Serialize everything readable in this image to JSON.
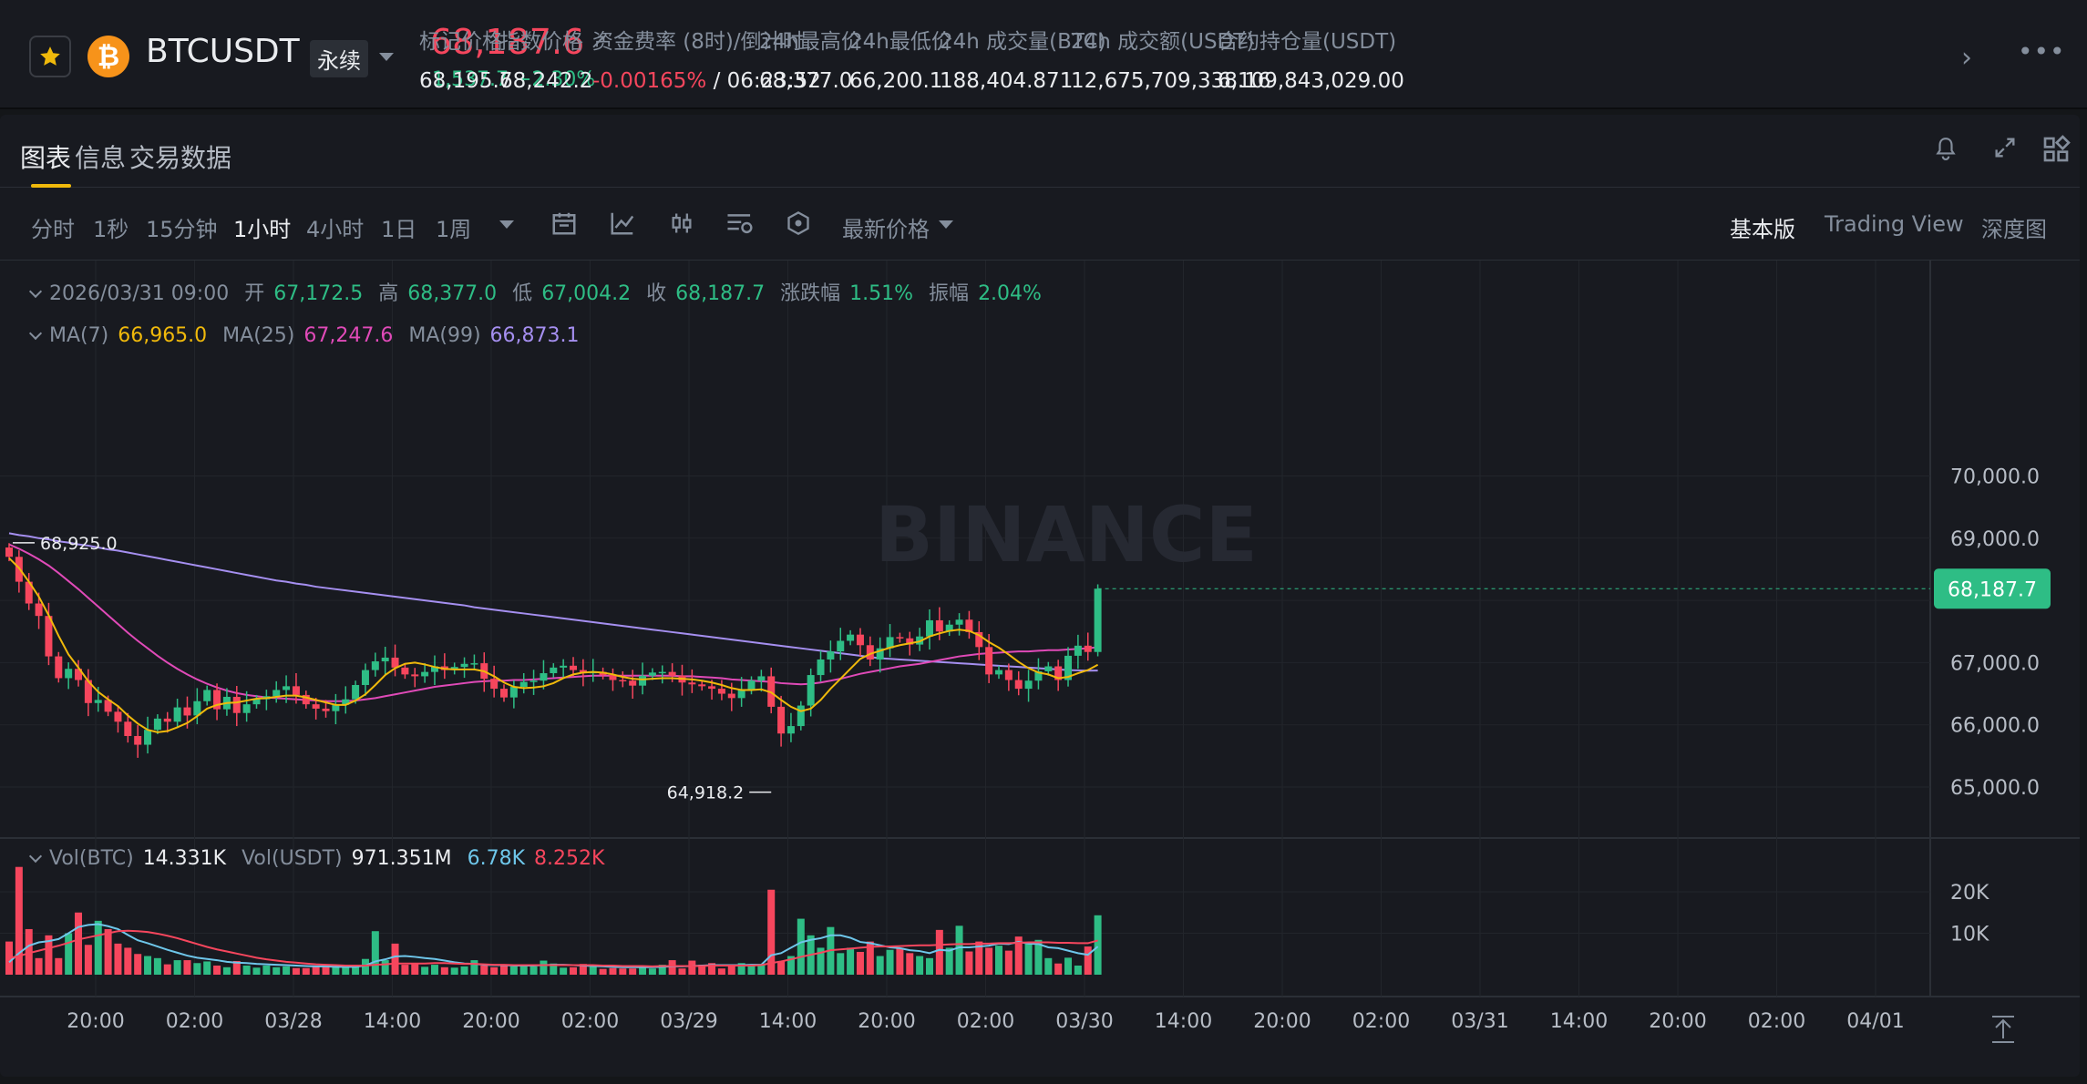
{
  "header": {
    "symbol": "BTCUSDT",
    "contract_type": "永续",
    "last_price": "68,187.6",
    "change": "1,537.7 +2.30%",
    "stats": [
      {
        "label": "标记价格",
        "value": "68,195.7"
      },
      {
        "label": "指数价格 ↗",
        "value": "68,242.2"
      },
      {
        "label": "资金费率 (8时)/倒计时",
        "value_neg": "-0.00165%",
        "value": " / 06:23:52"
      },
      {
        "label": "24h最高价",
        "value": "68,377.0"
      },
      {
        "label": "24h最低价",
        "value": "66,200.1"
      },
      {
        "label": "24h 成交量(BTC)",
        "value": "188,404.871"
      },
      {
        "label": "24h 成交额(USDT)",
        "value": "12,675,709,338.16"
      },
      {
        "label": "合约持仓量(USDT)",
        "value": "6,109,843,029.00"
      }
    ]
  },
  "tabs": [
    "图表",
    "信息",
    "交易数据"
  ],
  "intervals": [
    "分时",
    "1秒",
    "15分钟",
    "1小时",
    "4小时",
    "1日",
    "1周"
  ],
  "active_interval": "1小时",
  "price_type": "最新价格",
  "views": [
    "基本版",
    "Trading View",
    "深度图"
  ],
  "active_view": "基本版",
  "ohlc": {
    "time": "2026/03/31 09:00",
    "open_label": "开",
    "open": "67,172.5",
    "high_label": "高",
    "high": "68,377.0",
    "low_label": "低",
    "low": "67,004.2",
    "close_label": "收",
    "close": "68,187.7",
    "chg_label": "涨跌幅",
    "chg": "1.51%",
    "amp_label": "振幅",
    "amp": "2.04%"
  },
  "ma": {
    "ma7_label": "MA(7)",
    "ma7": "66,965.0",
    "ma25_label": "MA(25)",
    "ma25": "67,247.6",
    "ma99_label": "MA(99)",
    "ma99": "66,873.1"
  },
  "vol": {
    "btc_label": "Vol(BTC)",
    "btc": "14.331K",
    "usdt_label": "Vol(USDT)",
    "usdt": "971.351M",
    "ma_blue": "6.78K",
    "ma_red": "8.252K"
  },
  "colors": {
    "up": "#2ebd85",
    "down": "#f6465d",
    "ma7": "#f0b90b",
    "ma25": "#e04ab8",
    "ma99": "#a58ff0",
    "vol_ma_blue": "#6ec6ea",
    "vol_ma_red": "#f6465d",
    "accent": "#f0b90b"
  },
  "watermark": "BINANCE",
  "chart_data": {
    "type": "candlestick",
    "interval": "1h",
    "price_axis": {
      "ticks": [
        65000,
        66000,
        67000,
        68000,
        69000,
        70000
      ],
      "tick_labels": [
        "65,000.0",
        "66,000.0",
        "67,000.0",
        "",
        "69,000.0",
        "70,000.0"
      ]
    },
    "volume_axis": {
      "ticks": [
        10000,
        20000
      ],
      "tick_labels": [
        "10K",
        "20K"
      ]
    },
    "time_axis": {
      "labels": [
        "20:00",
        "02:00",
        "03/28",
        "14:00",
        "20:00",
        "02:00",
        "03/29",
        "14:00",
        "20:00",
        "02:00",
        "03/30",
        "14:00",
        "20:00",
        "02:00",
        "03/31",
        "14:00",
        "20:00",
        "02:00",
        "04/01"
      ]
    },
    "high_marker": "68,925.0",
    "low_marker": "64,918.2",
    "current_price_label": "68,187.7",
    "close": [
      68700,
      68300,
      67950,
      67750,
      67100,
      66750,
      66900,
      66720,
      66350,
      66400,
      66210,
      66050,
      65820,
      65680,
      65920,
      66100,
      66050,
      66280,
      66150,
      66380,
      66560,
      66250,
      66450,
      66190,
      66330,
      66410,
      66460,
      66560,
      66620,
      66480,
      66330,
      66260,
      66220,
      66320,
      66410,
      66640,
      66880,
      67020,
      67080,
      66920,
      66810,
      66780,
      66850,
      66940,
      66880,
      66930,
      66980,
      66990,
      66740,
      66580,
      66440,
      66610,
      66690,
      66710,
      66830,
      66920,
      66950,
      66880,
      66830,
      66850,
      66800,
      66720,
      66710,
      66630,
      66790,
      66840,
      66850,
      66790,
      66680,
      66650,
      66620,
      66580,
      66500,
      66430,
      66560,
      66710,
      66780,
      66290,
      65860,
      65980,
      66310,
      66800,
      67050,
      67180,
      67350,
      67450,
      67280,
      67050,
      67230,
      67410,
      67390,
      67290,
      67420,
      67680,
      67500,
      67610,
      67690,
      67490,
      67250,
      66810,
      66880,
      66720,
      66580,
      66710,
      66860,
      66940,
      66720,
      67110,
      67272,
      67171,
      68188
    ],
    "ma7": [
      68680,
      68520,
      68300,
      68060,
      67760,
      67430,
      67130,
      66920,
      66700,
      66530,
      66410,
      66300,
      66150,
      66020,
      65920,
      65880,
      65900,
      65960,
      66030,
      66140,
      66260,
      66320,
      66350,
      66360,
      66390,
      66420,
      66430,
      66450,
      66470,
      66470,
      66440,
      66400,
      66360,
      66320,
      66320,
      66390,
      66490,
      66640,
      66800,
      66910,
      66980,
      67000,
      66970,
      66930,
      66900,
      66890,
      66890,
      66890,
      66860,
      66780,
      66680,
      66610,
      66590,
      66600,
      66620,
      66670,
      66750,
      66810,
      66840,
      66850,
      66840,
      66810,
      66770,
      66740,
      66730,
      66740,
      66750,
      66750,
      66740,
      66730,
      66710,
      66680,
      66640,
      66590,
      66560,
      66560,
      66570,
      66520,
      66400,
      66290,
      66220,
      66260,
      66400,
      66580,
      66740,
      66900,
      67060,
      67140,
      67190,
      67240,
      67280,
      67310,
      67340,
      67420,
      67470,
      67510,
      67530,
      67510,
      67440,
      67330,
      67240,
      67130,
      67010,
      66910,
      66840,
      66810,
      66750,
      66770,
      66830,
      66880,
      66965
    ],
    "ma25": [
      68900,
      68830,
      68750,
      68660,
      68560,
      68440,
      68310,
      68180,
      68040,
      67900,
      67760,
      67620,
      67480,
      67350,
      67230,
      67110,
      67000,
      66900,
      66810,
      66730,
      66660,
      66600,
      66550,
      66510,
      66480,
      66460,
      66440,
      66430,
      66420,
      66410,
      66400,
      66390,
      66380,
      66380,
      66380,
      66390,
      66410,
      66430,
      66460,
      66490,
      66520,
      66550,
      66580,
      66610,
      66630,
      66650,
      66670,
      66690,
      66700,
      66710,
      66710,
      66720,
      66720,
      66730,
      66740,
      66750,
      66760,
      66770,
      66780,
      66790,
      66790,
      66790,
      66790,
      66790,
      66790,
      66790,
      66790,
      66790,
      66780,
      66780,
      66770,
      66760,
      66750,
      66730,
      66720,
      66710,
      66700,
      66690,
      66670,
      66660,
      66650,
      66660,
      66680,
      66710,
      66740,
      66780,
      66820,
      66850,
      66880,
      66910,
      66940,
      66960,
      66980,
      67010,
      67040,
      67070,
      67100,
      67120,
      67140,
      67150,
      67160,
      67170,
      67180,
      67180,
      67190,
      67200,
      67200,
      67210,
      67220,
      67230,
      67248
    ],
    "ma99": [
      69080,
      69050,
      69030,
      69000,
      68980,
      68950,
      68930,
      68900,
      68880,
      68850,
      68820,
      68800,
      68770,
      68740,
      68710,
      68680,
      68650,
      68620,
      68590,
      68560,
      68530,
      68500,
      68470,
      68440,
      68410,
      68380,
      68350,
      68320,
      68300,
      68270,
      68250,
      68220,
      68200,
      68180,
      68160,
      68140,
      68120,
      68100,
      68080,
      68060,
      68040,
      68020,
      68000,
      67980,
      67960,
      67940,
      67920,
      67890,
      67870,
      67850,
      67830,
      67810,
      67790,
      67770,
      67750,
      67730,
      67710,
      67690,
      67670,
      67650,
      67630,
      67610,
      67590,
      67570,
      67550,
      67530,
      67510,
      67490,
      67470,
      67450,
      67430,
      67410,
      67390,
      67370,
      67350,
      67330,
      67310,
      67290,
      67270,
      67250,
      67230,
      67210,
      67190,
      67170,
      67150,
      67130,
      67110,
      67090,
      67070,
      67060,
      67050,
      67040,
      67030,
      67020,
      67010,
      67000,
      66990,
      66980,
      66970,
      66960,
      66950,
      66940,
      66930,
      66920,
      66910,
      66900,
      66890,
      66880,
      66875,
      66870,
      66873
    ],
    "volume": [
      8000,
      26000,
      11000,
      4000,
      9500,
      4000,
      10000,
      15000,
      7200,
      13000,
      11000,
      7500,
      6500,
      5000,
      4500,
      4000,
      2500,
      3500,
      3500,
      2800,
      3200,
      2200,
      1800,
      3300,
      2200,
      1700,
      2200,
      1800,
      2000,
      1600,
      1600,
      1900,
      2000,
      1800,
      1800,
      2100,
      3800,
      10500,
      3500,
      7500,
      2400,
      2800,
      1900,
      2400,
      1800,
      1700,
      2000,
      3500,
      2200,
      1800,
      2300,
      2000,
      2400,
      2000,
      3400,
      2700,
      1700,
      1800,
      2600,
      2100,
      1400,
      1600,
      1500,
      1500,
      2000,
      1500,
      2400,
      3500,
      1500,
      3400,
      2400,
      2800,
      1500,
      2000,
      2800,
      2200,
      2500,
      20500,
      3300,
      4500,
      13500,
      9500,
      6500,
      11500,
      5200,
      6500,
      5500,
      8000,
      4500,
      6000,
      6500,
      5200,
      4500,
      4000,
      10800,
      6500,
      11800,
      5600,
      8000,
      6500,
      7000,
      5800,
      9200,
      7800,
      8400,
      4000,
      2700,
      4100,
      2200,
      6800,
      14331
    ],
    "volume_ma_blue": [
      3000,
      5200,
      7000,
      7800,
      8100,
      8600,
      10000,
      11500,
      12000,
      12200,
      11700,
      11000,
      9600,
      8300,
      7600,
      6800,
      6000,
      5300,
      4600,
      4100,
      3800,
      3500,
      3100,
      2900,
      2800,
      2600,
      2500,
      2400,
      2300,
      2200,
      2100,
      2000,
      2000,
      1900,
      1900,
      1900,
      2200,
      3200,
      3700,
      4400,
      4500,
      4300,
      4000,
      3800,
      3400,
      3000,
      2700,
      2600,
      2400,
      2300,
      2300,
      2200,
      2200,
      2200,
      2300,
      2400,
      2400,
      2300,
      2200,
      2100,
      2000,
      1900,
      1800,
      1800,
      1800,
      1800,
      1900,
      2000,
      2000,
      2100,
      2200,
      2300,
      2300,
      2300,
      2300,
      2400,
      2400,
      4700,
      5200,
      6500,
      7800,
      8400,
      8800,
      9500,
      9500,
      8900,
      7900,
      7600,
      7100,
      6600,
      6400,
      5900,
      5700,
      5200,
      6000,
      5800,
      6600,
      6600,
      6800,
      7000,
      7500,
      7400,
      7900,
      7500,
      7400,
      6600,
      6400,
      5800,
      5200,
      4800,
      6780
    ],
    "volume_ma_red": [
      4000,
      4500,
      5200,
      5800,
      6400,
      7000,
      7700,
      8500,
      9000,
      9500,
      10000,
      10500,
      10600,
      10500,
      10300,
      9900,
      9400,
      8800,
      8100,
      7400,
      6700,
      6100,
      5600,
      5100,
      4600,
      4100,
      3700,
      3400,
      3100,
      2900,
      2700,
      2500,
      2400,
      2300,
      2200,
      2200,
      2200,
      2400,
      2500,
      2700,
      2700,
      2700,
      2700,
      2800,
      2800,
      2700,
      2600,
      2600,
      2500,
      2400,
      2400,
      2300,
      2300,
      2300,
      2300,
      2300,
      2300,
      2300,
      2300,
      2300,
      2200,
      2200,
      2100,
      2100,
      2100,
      2000,
      2100,
      2100,
      2100,
      2100,
      2100,
      2200,
      2200,
      2200,
      2200,
      2200,
      2300,
      2800,
      3200,
      3700,
      4300,
      4800,
      5300,
      5900,
      6100,
      6300,
      6500,
      6700,
      6800,
      6800,
      6900,
      7000,
      7100,
      7100,
      7200,
      7300,
      7400,
      7400,
      7500,
      7500,
      7600,
      7600,
      7700,
      7800,
      7800,
      7800,
      7700,
      7700,
      7600,
      7600,
      8252
    ]
  }
}
